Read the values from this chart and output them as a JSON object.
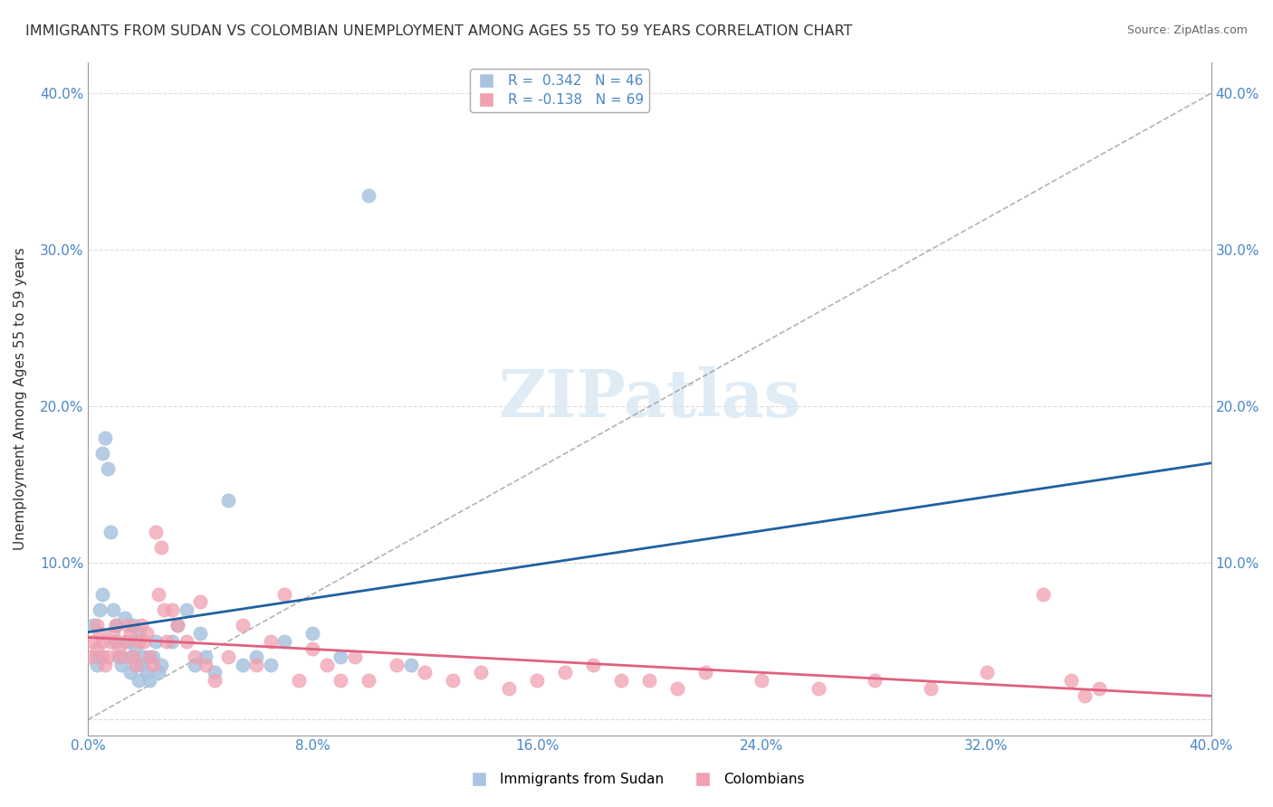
{
  "title": "IMMIGRANTS FROM SUDAN VS COLOMBIAN UNEMPLOYMENT AMONG AGES 55 TO 59 YEARS CORRELATION CHART",
  "source": "Source: ZipAtlas.com",
  "xlabel": "",
  "ylabel": "Unemployment Among Ages 55 to 59 years",
  "xlim": [
    0.0,
    0.4
  ],
  "ylim": [
    -0.01,
    0.42
  ],
  "xticks": [
    0.0,
    0.08,
    0.16,
    0.24,
    0.32,
    0.4
  ],
  "yticks": [
    0.0,
    0.1,
    0.2,
    0.3,
    0.4
  ],
  "xtick_labels": [
    "0.0%",
    "8.0%",
    "16.0%",
    "24.0%",
    "32.0%",
    "40.0%"
  ],
  "ytick_labels": [
    "",
    "10.0%",
    "20.0%",
    "30.0%",
    "40.0%"
  ],
  "right_ytick_labels": [
    "",
    "10.0%",
    "20.0%",
    "30.0%",
    "40.0%"
  ],
  "blue_R": 0.342,
  "blue_N": 46,
  "pink_R": -0.138,
  "pink_N": 69,
  "blue_color": "#a8c4e0",
  "blue_line_color": "#2060a0",
  "pink_color": "#f0a0b0",
  "pink_line_color": "#e06080",
  "watermark": "ZIPatlas",
  "legend_label_blue": "Immigrants from Sudan",
  "legend_label_pink": "Colombians",
  "blue_x": [
    0.002,
    0.003,
    0.003,
    0.004,
    0.005,
    0.005,
    0.006,
    0.007,
    0.008,
    0.009,
    0.01,
    0.01,
    0.011,
    0.012,
    0.013,
    0.014,
    0.015,
    0.015,
    0.016,
    0.017,
    0.018,
    0.018,
    0.019,
    0.02,
    0.021,
    0.022,
    0.023,
    0.024,
    0.025,
    0.026,
    0.03,
    0.032,
    0.035,
    0.038,
    0.04,
    0.042,
    0.045,
    0.05,
    0.055,
    0.06,
    0.065,
    0.07,
    0.08,
    0.09,
    0.1,
    0.115
  ],
  "blue_y": [
    0.06,
    0.035,
    0.04,
    0.07,
    0.08,
    0.17,
    0.18,
    0.16,
    0.12,
    0.07,
    0.06,
    0.05,
    0.04,
    0.035,
    0.065,
    0.05,
    0.03,
    0.04,
    0.06,
    0.045,
    0.055,
    0.025,
    0.035,
    0.04,
    0.03,
    0.025,
    0.04,
    0.05,
    0.03,
    0.035,
    0.05,
    0.06,
    0.07,
    0.035,
    0.055,
    0.04,
    0.03,
    0.14,
    0.035,
    0.04,
    0.035,
    0.05,
    0.055,
    0.04,
    0.335,
    0.035
  ],
  "pink_x": [
    0.001,
    0.002,
    0.003,
    0.003,
    0.004,
    0.005,
    0.005,
    0.006,
    0.007,
    0.008,
    0.009,
    0.01,
    0.011,
    0.012,
    0.013,
    0.014,
    0.015,
    0.016,
    0.017,
    0.018,
    0.019,
    0.02,
    0.021,
    0.022,
    0.023,
    0.024,
    0.025,
    0.026,
    0.027,
    0.028,
    0.03,
    0.032,
    0.035,
    0.038,
    0.04,
    0.042,
    0.045,
    0.05,
    0.055,
    0.06,
    0.065,
    0.07,
    0.075,
    0.08,
    0.085,
    0.09,
    0.095,
    0.1,
    0.11,
    0.12,
    0.13,
    0.14,
    0.15,
    0.16,
    0.17,
    0.18,
    0.19,
    0.2,
    0.21,
    0.22,
    0.24,
    0.26,
    0.28,
    0.3,
    0.32,
    0.34,
    0.35,
    0.355,
    0.36
  ],
  "pink_y": [
    0.04,
    0.05,
    0.06,
    0.045,
    0.055,
    0.04,
    0.05,
    0.035,
    0.04,
    0.05,
    0.055,
    0.06,
    0.045,
    0.04,
    0.05,
    0.06,
    0.055,
    0.04,
    0.035,
    0.05,
    0.06,
    0.05,
    0.055,
    0.04,
    0.035,
    0.12,
    0.08,
    0.11,
    0.07,
    0.05,
    0.07,
    0.06,
    0.05,
    0.04,
    0.075,
    0.035,
    0.025,
    0.04,
    0.06,
    0.035,
    0.05,
    0.08,
    0.025,
    0.045,
    0.035,
    0.025,
    0.04,
    0.025,
    0.035,
    0.03,
    0.025,
    0.03,
    0.02,
    0.025,
    0.03,
    0.035,
    0.025,
    0.025,
    0.02,
    0.03,
    0.025,
    0.02,
    0.025,
    0.02,
    0.03,
    0.08,
    0.025,
    0.015,
    0.02
  ]
}
